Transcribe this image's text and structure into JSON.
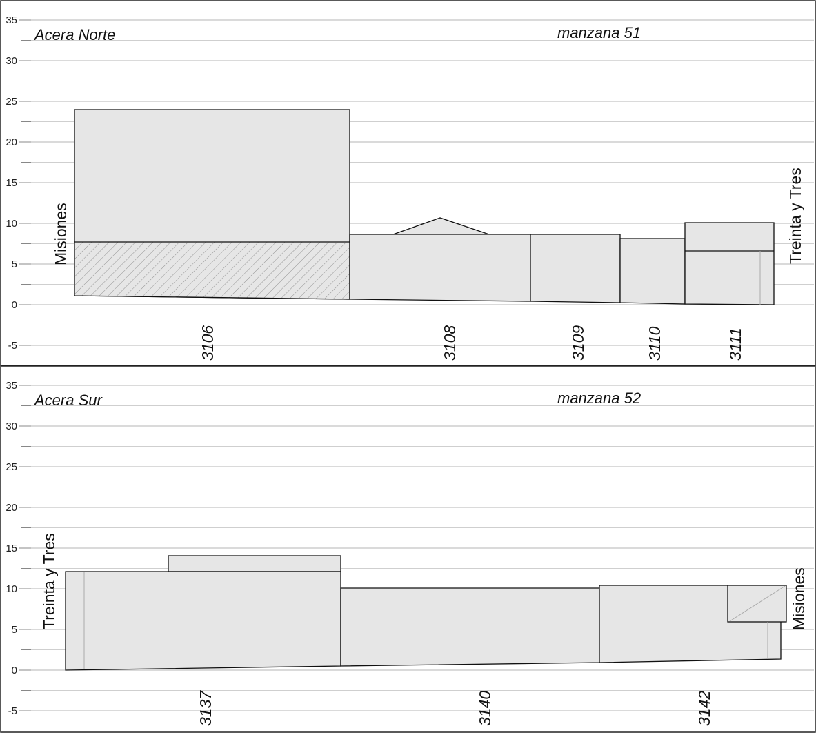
{
  "y_ticks": [
    "35",
    "30",
    "25",
    "20",
    "15",
    "10",
    "5",
    "0",
    "-5"
  ],
  "panels": [
    {
      "sidewalk": "Acera Norte",
      "block": "manzana 51",
      "left_street": "Misiones",
      "right_street": "Treinta y Tres",
      "lots": [
        "3106",
        "3108",
        "3109",
        "3110",
        "3111"
      ]
    },
    {
      "sidewalk": "Acera Sur",
      "block": "manzana 52",
      "left_street": "Treinta y Tres",
      "right_street": "Misiones",
      "lots": [
        "3137",
        "3140",
        "3142"
      ]
    }
  ],
  "colors": {
    "building_fill": "#e6e6e6",
    "outline": "#111111",
    "grid": "#b4b4b4",
    "hatch": "#8a8a8a"
  }
}
